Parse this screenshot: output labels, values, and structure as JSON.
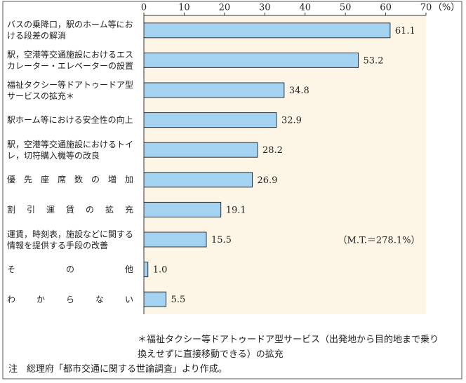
{
  "chart_data": {
    "type": "bar",
    "orientation": "horizontal",
    "categories": [
      "バスの乗降口，駅のホーム等における段差の解消",
      "駅，空港等交通施設におけるエスカレーター・エレベーターの設置",
      "福祉タクシー等ドアトゥードア型サービスの拡充＊",
      "駅ホーム等における安全性の向上",
      "駅，空港等交通施設におけるトイレ，切符購入機等の改良",
      "優先座席数の増加",
      "割引運賃の拡充",
      "運賃，時刻表，施設などに関する情報を提供する手段の改善",
      "その他",
      "わからない"
    ],
    "values": [
      61.1,
      53.2,
      34.8,
      32.9,
      28.2,
      26.9,
      19.1,
      15.5,
      1.0,
      5.5
    ],
    "value_labels": [
      "61.1",
      "53.2",
      "34.8",
      "32.9",
      "28.2",
      "26.9",
      "19.1",
      "15.5",
      "1.0",
      "5.5"
    ],
    "color": "#a3d3f0",
    "xlim": [
      0,
      70
    ],
    "xticks": [
      0,
      10,
      20,
      30,
      40,
      50,
      60,
      70
    ],
    "x_unit": "（%）",
    "annotation": "（M.T.＝278.1%）",
    "footnote": "＊福祉タクシー等ドアトゥードア型サービス（出発地から目的地まで乗り換えせずに直接移動できる）の拡充",
    "source": "注　総理府「都市交通に関する世論調査」より作成。"
  }
}
